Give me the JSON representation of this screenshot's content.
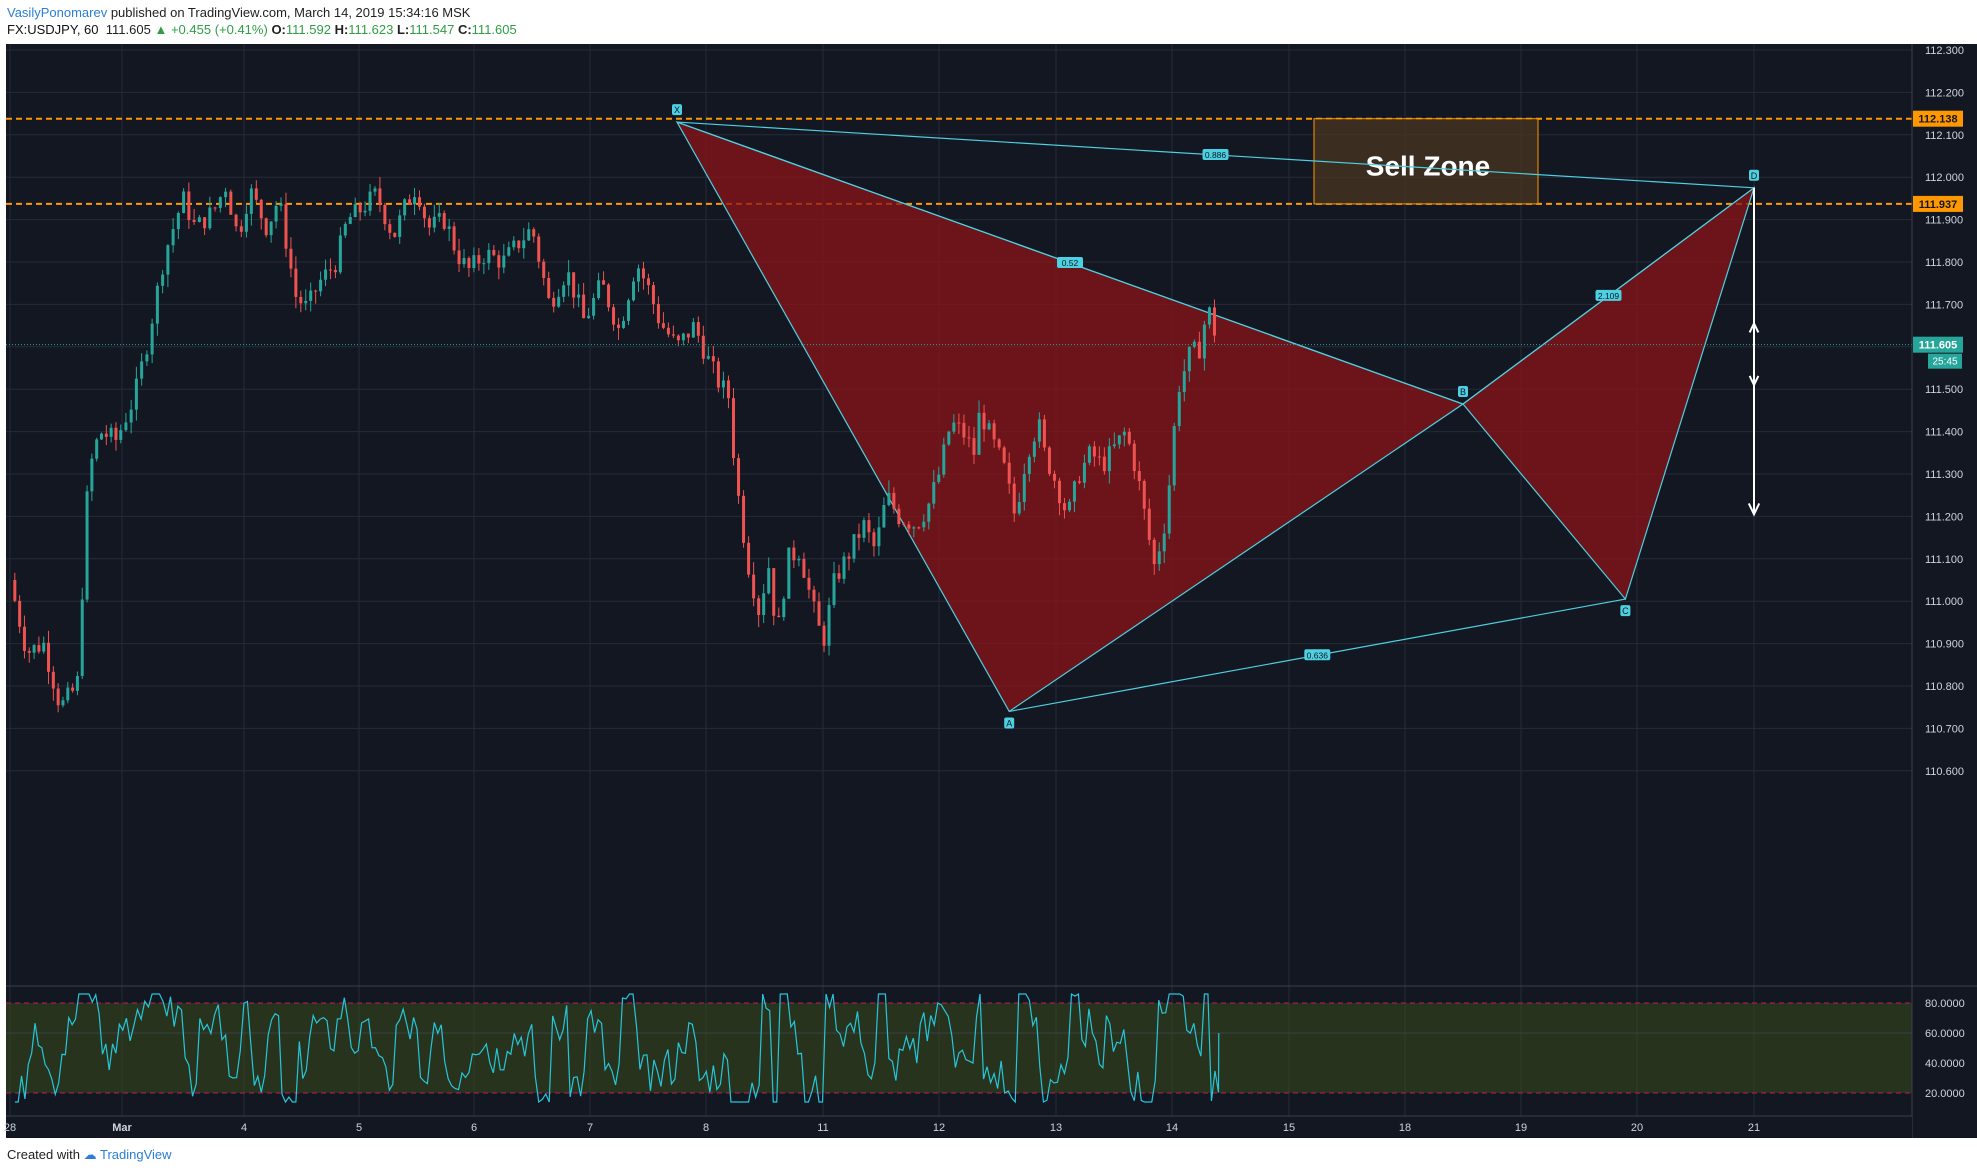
{
  "header": {
    "author": "VasilyPonomarev",
    "published_text": "published on TradingView.com, March 14, 2019 15:34:16 MSK",
    "symbol": "FX:USDJPY, 60",
    "last": "111.605",
    "change": "+0.455 (+0.41%)",
    "open_label": "O:",
    "open": "111.592",
    "high_label": "H:",
    "high": "111.623",
    "low_label": "L:",
    "low": "111.547",
    "close_label": "C:",
    "close": "111.605"
  },
  "footer": {
    "created_with": "Created with",
    "brand": "TradingView"
  },
  "colors": {
    "background": "#131722",
    "up": "#26a69a",
    "down": "#ef5350",
    "pattern_fill": "#8b1418",
    "pattern_line": "#4dd0e1",
    "level_line": "#ff9800",
    "rsi_line": "#26c6da",
    "rsi_band": "#3a4a1c",
    "rsi_bound": "#c2185b",
    "forecast": "#ffffff"
  },
  "chart_data": {
    "type": "candlestick",
    "symbol": "FX:USDJPY",
    "interval": "60",
    "ylim": [
      110.56,
      112.35
    ],
    "price_ticks": [
      "112.300",
      "112.200",
      "112.100",
      "112.000",
      "111.900",
      "111.800",
      "111.700",
      "111.600",
      "111.500",
      "111.400",
      "111.300",
      "111.200",
      "111.100",
      "111.000",
      "110.900",
      "110.800",
      "110.700",
      "110.600"
    ],
    "x_ticks": [
      "28",
      "Mar",
      "4",
      "5",
      "6",
      "7",
      "8",
      "11",
      "12",
      "13",
      "14",
      "15",
      "18",
      "19",
      "20",
      "21"
    ],
    "current_price": "111.605",
    "countdown": "25:45",
    "levels": [
      {
        "value": 112.138,
        "label": "112.138"
      },
      {
        "value": 111.937,
        "label": "111.937"
      }
    ],
    "sell_zone": {
      "label": "Sell Zone",
      "from": 111.937,
      "to": 112.138
    },
    "pattern": {
      "points": [
        {
          "name": "X",
          "time": 5.75,
          "price": 112.13
        },
        {
          "name": "A",
          "time": 8.6,
          "price": 110.74
        },
        {
          "name": "B",
          "time": 12.5,
          "price": 111.465
        },
        {
          "name": "C",
          "time": 13.9,
          "price": 111.005
        },
        {
          "name": "D",
          "time": 15.45,
          "price": 111.975
        }
      ],
      "ratios": [
        {
          "label": "0.52",
          "from": "X",
          "to": "B"
        },
        {
          "label": "0.636",
          "from": "A",
          "to": "C"
        },
        {
          "label": "2.109",
          "from": "B",
          "to": "D"
        },
        {
          "label": "0.886",
          "from": "X",
          "to": "D"
        }
      ]
    },
    "forecast_path": [
      {
        "time": 15.45,
        "price": 111.975
      },
      {
        "time": 16.25,
        "price": 111.51
      },
      {
        "time": 16.85,
        "price": 111.655
      },
      {
        "time": 17.75,
        "price": 111.205
      }
    ],
    "price_series": [
      [
        0,
        111.05
      ],
      [
        0.15,
        110.88
      ],
      [
        0.3,
        110.9
      ],
      [
        0.45,
        110.75
      ],
      [
        0.6,
        110.8
      ],
      [
        0.7,
        111.3
      ],
      [
        0.8,
        111.4
      ],
      [
        0.95,
        111.38
      ],
      [
        1.1,
        111.48
      ],
      [
        1.2,
        111.6
      ],
      [
        1.35,
        111.82
      ],
      [
        1.5,
        111.95
      ],
      [
        1.6,
        111.88
      ],
      [
        1.75,
        111.92
      ],
      [
        1.85,
        111.98
      ],
      [
        1.95,
        111.86
      ],
      [
        2.05,
        111.97
      ],
      [
        2.2,
        111.88
      ],
      [
        2.3,
        111.95
      ],
      [
        2.45,
        111.72
      ],
      [
        2.55,
        111.69
      ],
      [
        2.65,
        111.75
      ],
      [
        2.8,
        111.8
      ],
      [
        2.9,
        111.9
      ],
      [
        3.0,
        111.92
      ],
      [
        3.15,
        111.96
      ],
      [
        3.3,
        111.86
      ],
      [
        3.4,
        111.93
      ],
      [
        3.5,
        111.98
      ],
      [
        3.6,
        111.88
      ],
      [
        3.75,
        111.9
      ],
      [
        3.85,
        111.82
      ],
      [
        3.95,
        111.78
      ],
      [
        4.1,
        111.82
      ],
      [
        4.25,
        111.8
      ],
      [
        4.4,
        111.85
      ],
      [
        4.5,
        111.88
      ],
      [
        4.65,
        111.7
      ],
      [
        4.8,
        111.78
      ],
      [
        4.95,
        111.66
      ],
      [
        5.1,
        111.75
      ],
      [
        5.25,
        111.64
      ],
      [
        5.4,
        111.8
      ],
      [
        5.5,
        111.74
      ],
      [
        5.6,
        111.66
      ],
      [
        5.75,
        111.6
      ],
      [
        5.9,
        111.65
      ],
      [
        6.0,
        111.58
      ],
      [
        6.1,
        111.52
      ],
      [
        6.2,
        111.48
      ],
      [
        6.25,
        111.3
      ],
      [
        6.35,
        111.1
      ],
      [
        6.45,
        110.98
      ],
      [
        6.55,
        111.1
      ],
      [
        6.6,
        110.9
      ],
      [
        6.7,
        111.1
      ],
      [
        6.8,
        111.12
      ],
      [
        6.9,
        111.0
      ],
      [
        7.0,
        110.9
      ],
      [
        7.1,
        111.05
      ],
      [
        7.2,
        111.1
      ],
      [
        7.35,
        111.18
      ],
      [
        7.45,
        111.12
      ],
      [
        7.55,
        111.25
      ],
      [
        7.65,
        111.2
      ],
      [
        7.8,
        111.18
      ],
      [
        7.9,
        111.22
      ],
      [
        8.0,
        111.3
      ],
      [
        8.1,
        111.42
      ],
      [
        8.2,
        111.4
      ],
      [
        8.3,
        111.35
      ],
      [
        8.35,
        111.45
      ],
      [
        8.45,
        111.38
      ],
      [
        8.55,
        111.32
      ],
      [
        8.65,
        111.2
      ],
      [
        8.75,
        111.35
      ],
      [
        8.85,
        111.42
      ],
      [
        8.9,
        111.35
      ],
      [
        9.0,
        111.28
      ],
      [
        9.1,
        111.2
      ],
      [
        9.2,
        111.3
      ],
      [
        9.3,
        111.35
      ],
      [
        9.4,
        111.32
      ],
      [
        9.5,
        111.36
      ],
      [
        9.6,
        111.4
      ],
      [
        9.7,
        111.3
      ],
      [
        9.8,
        111.15
      ],
      [
        9.85,
        111.08
      ],
      [
        9.95,
        111.2
      ],
      [
        10.0,
        111.35
      ],
      [
        10.05,
        111.5
      ],
      [
        10.15,
        111.58
      ],
      [
        10.25,
        111.6
      ],
      [
        10.3,
        111.7
      ],
      [
        10.35,
        111.65
      ],
      [
        10.4,
        111.6
      ]
    ],
    "series_time_origin_note_free": true,
    "rsi": {
      "ylim": [
        10,
        90
      ],
      "ticks": [
        "80.0000",
        "60.0000",
        "40.0000",
        "20.0000"
      ],
      "overbought": 80,
      "oversold": 20,
      "current": 60
    }
  }
}
